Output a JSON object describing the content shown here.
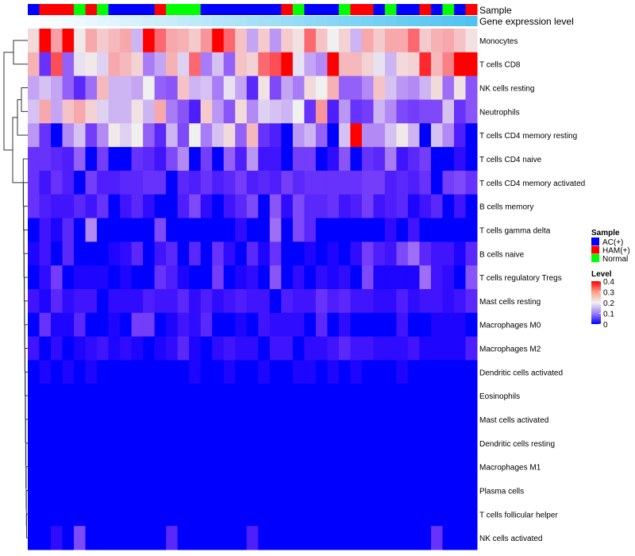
{
  "chart_data": {
    "type": "heatmap",
    "title": "",
    "annotation_tracks": [
      {
        "name": "Sample",
        "type": "categorical"
      },
      {
        "name": "Gene expression level",
        "type": "continuous-gradient"
      }
    ],
    "sample_groups": [
      "AC(+)",
      "HAM(+)",
      "HAM(+)",
      "HAM(+)",
      "Normal",
      "HAM(+)",
      "Normal",
      "AC(+)",
      "AC(+)",
      "AC(+)",
      "AC(+)",
      "HAM(+)",
      "Normal",
      "Normal",
      "Normal",
      "AC(+)",
      "AC(+)",
      "AC(+)",
      "AC(+)",
      "AC(+)",
      "AC(+)",
      "AC(+)",
      "HAM(+)",
      "Normal",
      "AC(+)",
      "AC(+)",
      "AC(+)",
      "Normal",
      "HAM(+)",
      "HAM(+)",
      "AC(+)",
      "Normal",
      "AC(+)",
      "AC(+)",
      "HAM(+)",
      "AC(+)",
      "Normal",
      "AC(+)",
      "HAM(+)"
    ],
    "rows": [
      "Monocytes",
      "T cells CD8",
      "NK cells resting",
      "Neutrophils",
      "T cells CD4 memory resting",
      "T cells CD4 naive",
      "T cells CD4 memory activated",
      "B cells memory",
      "T cells gamma delta",
      "B cells naive",
      "T cells regulatory  Tregs",
      "Mast cells resting",
      "Macrophages M0",
      "Macrophages M2",
      "Dendritic cells activated",
      "Eosinophils",
      "Mast cells activated",
      "Dendritic cells resting",
      "Macrophages M1",
      "Plasma cells",
      "T cells follicular helper",
      "NK cells activated"
    ],
    "values": [
      [
        0.23,
        0.4,
        0.3,
        0.4,
        0.21,
        0.29,
        0.25,
        0.27,
        0.29,
        0.16,
        0.4,
        0.35,
        0.29,
        0.28,
        0.25,
        0.31,
        0.4,
        0.35,
        0.26,
        0.15,
        0.25,
        0.14,
        0.25,
        0.22,
        0.35,
        0.26,
        0.2,
        0.24,
        0.16,
        0.29,
        0.25,
        0.29,
        0.29,
        0.35,
        0.25,
        0.28,
        0.29,
        0.26,
        0.22
      ],
      [
        0.28,
        0.06,
        0.37,
        0.1,
        0.19,
        0.21,
        0.18,
        0.29,
        0.27,
        0.24,
        0.12,
        0.15,
        0.28,
        0.18,
        0.35,
        0.12,
        0.17,
        0.1,
        0.26,
        0.24,
        0.35,
        0.37,
        0.4,
        0.19,
        0.15,
        0.13,
        0.4,
        0.27,
        0.27,
        0.24,
        0.19,
        0.16,
        0.23,
        0.24,
        0.39,
        0.27,
        0.33,
        0.4,
        0.4
      ],
      [
        0.15,
        0.17,
        0.15,
        0.1,
        0.05,
        0.11,
        0.27,
        0.16,
        0.16,
        0.15,
        0.2,
        0.1,
        0.09,
        0.26,
        0.16,
        0.17,
        0.12,
        0.19,
        0.15,
        0.05,
        0.22,
        0.08,
        0.15,
        0.12,
        0.23,
        0.2,
        0.28,
        0.1,
        0.1,
        0.13,
        0.26,
        0.17,
        0.14,
        0.13,
        0.16,
        0.23,
        0.11,
        0.22,
        0.09
      ],
      [
        0.17,
        0.29,
        0.15,
        0.26,
        0.29,
        0.24,
        0.18,
        0.16,
        0.16,
        0.22,
        0.16,
        0.29,
        0.12,
        0.09,
        0.04,
        0.25,
        0.14,
        0.09,
        0.23,
        0.13,
        0.18,
        0.17,
        0.16,
        0.2,
        0.06,
        0.31,
        0.04,
        0.14,
        0.06,
        0.07,
        0.16,
        0.13,
        0.08,
        0.07,
        0.08,
        0.08,
        0.17,
        0.06,
        0.09
      ],
      [
        0.14,
        0.06,
        0,
        0.13,
        0.17,
        0.07,
        0.13,
        0.21,
        0.18,
        0.2,
        0.1,
        0.05,
        0.16,
        0.08,
        0.2,
        0.12,
        0.17,
        0.23,
        0.1,
        0.27,
        0.06,
        0.04,
        0,
        0.14,
        0.16,
        0.1,
        0,
        0.17,
        0.4,
        0.13,
        0.13,
        0.17,
        0.21,
        0.16,
        0,
        0.17,
        0.13,
        0.04,
        0
      ],
      [
        0.06,
        0.06,
        0.05,
        0.04,
        0.1,
        0,
        0.07,
        0,
        0,
        0.06,
        0.05,
        0.03,
        0.08,
        0.13,
        0,
        0.07,
        0,
        0.1,
        0.04,
        0.14,
        0.03,
        0.03,
        0,
        0.07,
        0.07,
        0,
        0.02,
        0.09,
        0,
        0.06,
        0.05,
        0.12,
        0.03,
        0.05,
        0.07,
        0,
        0,
        0.02,
        0
      ],
      [
        0.06,
        0.03,
        0.06,
        0.04,
        0,
        0.07,
        0.04,
        0.04,
        0.05,
        0.05,
        0.06,
        0.06,
        0,
        0.05,
        0.04,
        0.06,
        0.04,
        0.05,
        0.07,
        0.04,
        0.05,
        0.04,
        0.07,
        0.05,
        0.06,
        0.06,
        0.06,
        0.06,
        0.06,
        0.07,
        0.07,
        0.04,
        0.05,
        0.04,
        0.06,
        0,
        0.07,
        0.08,
        0.06
      ],
      [
        0.06,
        0.04,
        0.03,
        0.03,
        0.05,
        0.03,
        0.06,
        0,
        0.03,
        0.05,
        0.02,
        0,
        0,
        0.04,
        0.08,
        0.02,
        0,
        0.03,
        0.05,
        0.08,
        0,
        0.09,
        0.02,
        0.08,
        0.05,
        0.05,
        0.06,
        0.03,
        0.04,
        0.07,
        0.03,
        0.04,
        0.05,
        0.01,
        0.03,
        0.05,
        0,
        0.03,
        0
      ],
      [
        0,
        0.03,
        0.01,
        0.05,
        0,
        0.13,
        0,
        0,
        0,
        0,
        0,
        0.08,
        0,
        0,
        0,
        0,
        0,
        0,
        0.02,
        0,
        0,
        0.11,
        0,
        0.08,
        0.05,
        0,
        0,
        0,
        0,
        0,
        0,
        0.02,
        0,
        0.03,
        0,
        0,
        0,
        0,
        0
      ],
      [
        0.01,
        0.03,
        0,
        0.05,
        0,
        0,
        0,
        0.01,
        0.02,
        0.05,
        0,
        0.03,
        0.05,
        0,
        0.05,
        0,
        0.06,
        0.02,
        0,
        0.05,
        0.01,
        0.06,
        0,
        0,
        0.01,
        0,
        0.01,
        0,
        0.02,
        0.07,
        0.04,
        0.03,
        0.08,
        0.11,
        0.05,
        0.03,
        0.03,
        0.01,
        0.05
      ],
      [
        0,
        0.02,
        0.07,
        0,
        0.01,
        0.01,
        0.01,
        0,
        0.01,
        0,
        0,
        0.06,
        0.04,
        0.01,
        0,
        0,
        0.07,
        0,
        0.01,
        0.02,
        0,
        0.09,
        0,
        0.02,
        0,
        0.02,
        0.01,
        0.02,
        0,
        0.08,
        0.01,
        0.01,
        0.01,
        0.01,
        0.11,
        0.03,
        0.02,
        0,
        0.09
      ],
      [
        0.03,
        0.01,
        0.05,
        0.02,
        0.03,
        0.03,
        0,
        0.02,
        0.02,
        0.02,
        0.04,
        0.03,
        0.03,
        0.05,
        0.02,
        0.04,
        0.02,
        0.03,
        0.04,
        0.03,
        0.03,
        0,
        0.04,
        0.03,
        0.03,
        0.06,
        0.04,
        0.05,
        0.03,
        0.03,
        0.02,
        0.02,
        0.04,
        0.02,
        0.03,
        0.03,
        0.02,
        0.03,
        0.05
      ],
      [
        0,
        0.06,
        0.01,
        0.01,
        0.05,
        0,
        0,
        0.01,
        0,
        0.07,
        0.07,
        0,
        0.01,
        0.03,
        0.02,
        0.05,
        0,
        0,
        0.01,
        0,
        0.03,
        0.02,
        0.02,
        0.02,
        0,
        0.05,
        0,
        0.02,
        0,
        0,
        0,
        0,
        0.03,
        0,
        0,
        0.01,
        0.01,
        0.01,
        0
      ],
      [
        0.03,
        0,
        0.02,
        0,
        0.01,
        0.02,
        0.03,
        0.01,
        0.02,
        0.01,
        0,
        0.01,
        0.02,
        0.05,
        0.01,
        0,
        0.02,
        0.03,
        0.02,
        0.02,
        0,
        0.03,
        0.03,
        0,
        0.02,
        0.02,
        0.03,
        0.05,
        0.03,
        0.03,
        0.02,
        0.02,
        0.02,
        0.03,
        0.01,
        0.01,
        0.01,
        0.01,
        0.04
      ],
      [
        0,
        0.01,
        0,
        0.01,
        0,
        0.01,
        0,
        0,
        0,
        0,
        0,
        0,
        0,
        0,
        0.01,
        0,
        0,
        0.01,
        0,
        0,
        0.01,
        0,
        0,
        0.01,
        0.01,
        0,
        0.01,
        0,
        0.01,
        0,
        0,
        0,
        0.01,
        0,
        0,
        0,
        0,
        0,
        0
      ],
      [
        0,
        0,
        0,
        0,
        0,
        0,
        0,
        0,
        0,
        0,
        0,
        0,
        0,
        0,
        0,
        0,
        0,
        0,
        0,
        0,
        0,
        0,
        0,
        0,
        0,
        0,
        0,
        0,
        0,
        0,
        0,
        0,
        0,
        0,
        0,
        0,
        0,
        0,
        0
      ],
      [
        0,
        0,
        0,
        0,
        0,
        0,
        0,
        0,
        0,
        0,
        0,
        0,
        0,
        0,
        0,
        0,
        0,
        0,
        0,
        0,
        0,
        0,
        0,
        0,
        0,
        0,
        0,
        0,
        0,
        0,
        0,
        0,
        0,
        0,
        0,
        0,
        0,
        0,
        0
      ],
      [
        0,
        0,
        0,
        0,
        0,
        0,
        0,
        0,
        0,
        0,
        0,
        0,
        0,
        0,
        0,
        0,
        0,
        0,
        0,
        0,
        0,
        0,
        0,
        0,
        0,
        0,
        0,
        0,
        0,
        0,
        0,
        0,
        0,
        0,
        0,
        0,
        0,
        0,
        0
      ],
      [
        0,
        0,
        0,
        0,
        0,
        0,
        0,
        0,
        0,
        0,
        0,
        0,
        0,
        0,
        0,
        0,
        0,
        0,
        0,
        0,
        0,
        0,
        0,
        0,
        0,
        0,
        0,
        0,
        0,
        0,
        0,
        0,
        0,
        0,
        0,
        0,
        0,
        0,
        0
      ],
      [
        0,
        0,
        0,
        0,
        0,
        0,
        0,
        0,
        0,
        0,
        0,
        0,
        0,
        0,
        0,
        0,
        0,
        0,
        0,
        0,
        0,
        0,
        0,
        0,
        0,
        0,
        0,
        0,
        0,
        0,
        0,
        0,
        0,
        0,
        0,
        0,
        0,
        0,
        0
      ],
      [
        0,
        0,
        0,
        0,
        0,
        0,
        0,
        0,
        0,
        0,
        0,
        0,
        0,
        0,
        0,
        0,
        0,
        0,
        0,
        0,
        0,
        0,
        0,
        0,
        0,
        0,
        0,
        0,
        0,
        0,
        0,
        0,
        0,
        0,
        0,
        0,
        0,
        0,
        0
      ],
      [
        0,
        0,
        0.02,
        0,
        0.08,
        0,
        0,
        0,
        0,
        0,
        0,
        0,
        0.05,
        0,
        0,
        0,
        0,
        0,
        0,
        0.04,
        0,
        0,
        0,
        0,
        0,
        0,
        0,
        0,
        0,
        0,
        0,
        0,
        0,
        0,
        0,
        0.06,
        0,
        0,
        0
      ]
    ],
    "color_range": [
      0,
      0.4
    ],
    "legend": {
      "placement": "right",
      "sample_title": "Sample",
      "sample_entries": [
        {
          "label": "AC(+)",
          "color": "#0000FF"
        },
        {
          "label": "HAM(+)",
          "color": "#FF0000"
        },
        {
          "label": "Normal",
          "color": "#00FF00"
        }
      ],
      "level_title": "Level",
      "level_ticks": [
        "0.4",
        "0.3",
        "0.2",
        "0.1",
        "0"
      ],
      "level_tick_values": [
        0.4,
        0.3,
        0.2,
        0.1,
        0
      ]
    },
    "gene_expression_colors": [
      "#FFFFFF",
      "#4FC3F0"
    ],
    "row_dendrogram": true
  }
}
